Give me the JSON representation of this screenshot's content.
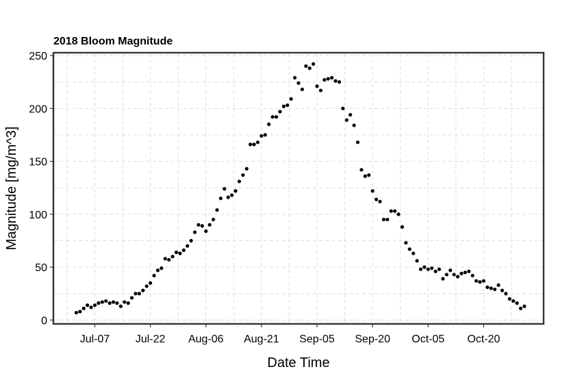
{
  "chart_data": {
    "type": "scatter",
    "title": "2018 Bloom Magnitude",
    "xlabel": "Date Time",
    "ylabel": "Magnitude [mg/m^3]",
    "x_ticks": [
      "Jul-07",
      "Jul-22",
      "Aug-06",
      "Aug-21",
      "Sep-05",
      "Sep-20",
      "Oct-05",
      "Oct-20"
    ],
    "x_tick_dates": [
      "2018-07-07",
      "2018-07-22",
      "2018-08-06",
      "2018-08-21",
      "2018-09-05",
      "2018-09-20",
      "2018-10-05",
      "2018-10-20"
    ],
    "xlim": [
      "2018-06-26",
      "2018-11-05"
    ],
    "y_ticks": [
      0,
      50,
      100,
      150,
      200,
      250
    ],
    "ylim": [
      -3,
      252
    ],
    "grid": true,
    "legend": "none",
    "point_color": "#000000",
    "series": [
      {
        "points": [
          [
            "2018-07-02",
            7
          ],
          [
            "2018-07-03",
            8
          ],
          [
            "2018-07-04",
            11
          ],
          [
            "2018-07-05",
            14
          ],
          [
            "2018-07-06",
            12
          ],
          [
            "2018-07-07",
            14
          ],
          [
            "2018-07-08",
            16
          ],
          [
            "2018-07-09",
            17
          ],
          [
            "2018-07-10",
            18
          ],
          [
            "2018-07-11",
            16
          ],
          [
            "2018-07-12",
            17
          ],
          [
            "2018-07-13",
            16
          ],
          [
            "2018-07-14",
            13
          ],
          [
            "2018-07-15",
            17
          ],
          [
            "2018-07-16",
            16
          ],
          [
            "2018-07-17",
            21
          ],
          [
            "2018-07-18",
            25
          ],
          [
            "2018-07-19",
            25
          ],
          [
            "2018-07-20",
            28
          ],
          [
            "2018-07-21",
            32
          ],
          [
            "2018-07-22",
            35
          ],
          [
            "2018-07-23",
            42
          ],
          [
            "2018-07-24",
            47
          ],
          [
            "2018-07-25",
            49
          ],
          [
            "2018-07-26",
            58
          ],
          [
            "2018-07-27",
            57
          ],
          [
            "2018-07-28",
            60
          ],
          [
            "2018-07-29",
            64
          ],
          [
            "2018-07-30",
            63
          ],
          [
            "2018-07-31",
            66
          ],
          [
            "2018-08-01",
            70
          ],
          [
            "2018-08-02",
            75
          ],
          [
            "2018-08-03",
            83
          ],
          [
            "2018-08-04",
            90
          ],
          [
            "2018-08-05",
            89
          ],
          [
            "2018-08-06",
            84
          ],
          [
            "2018-08-07",
            90
          ],
          [
            "2018-08-08",
            95
          ],
          [
            "2018-08-09",
            104
          ],
          [
            "2018-08-10",
            115
          ],
          [
            "2018-08-11",
            124
          ],
          [
            "2018-08-12",
            116
          ],
          [
            "2018-08-13",
            118
          ],
          [
            "2018-08-14",
            122
          ],
          [
            "2018-08-15",
            131
          ],
          [
            "2018-08-16",
            137
          ],
          [
            "2018-08-17",
            143
          ],
          [
            "2018-08-18",
            166
          ],
          [
            "2018-08-19",
            166
          ],
          [
            "2018-08-20",
            168
          ],
          [
            "2018-08-21",
            174
          ],
          [
            "2018-08-22",
            175
          ],
          [
            "2018-08-23",
            185
          ],
          [
            "2018-08-24",
            192
          ],
          [
            "2018-08-25",
            192
          ],
          [
            "2018-08-26",
            197
          ],
          [
            "2018-08-27",
            202
          ],
          [
            "2018-08-28",
            203
          ],
          [
            "2018-08-29",
            209
          ],
          [
            "2018-08-30",
            229
          ],
          [
            "2018-08-31",
            224
          ],
          [
            "2018-09-01",
            218
          ],
          [
            "2018-09-02",
            240
          ],
          [
            "2018-09-03",
            238
          ],
          [
            "2018-09-04",
            242
          ],
          [
            "2018-09-05",
            221
          ],
          [
            "2018-09-06",
            217
          ],
          [
            "2018-09-07",
            227
          ],
          [
            "2018-09-08",
            228
          ],
          [
            "2018-09-09",
            229
          ],
          [
            "2018-09-10",
            226
          ],
          [
            "2018-09-11",
            225
          ],
          [
            "2018-09-12",
            200
          ],
          [
            "2018-09-13",
            189
          ],
          [
            "2018-09-14",
            194
          ],
          [
            "2018-09-15",
            184
          ],
          [
            "2018-09-16",
            168
          ],
          [
            "2018-09-17",
            142
          ],
          [
            "2018-09-18",
            136
          ],
          [
            "2018-09-19",
            137
          ],
          [
            "2018-09-20",
            122
          ],
          [
            "2018-09-21",
            114
          ],
          [
            "2018-09-22",
            112
          ],
          [
            "2018-09-23",
            95
          ],
          [
            "2018-09-24",
            95
          ],
          [
            "2018-09-25",
            103
          ],
          [
            "2018-09-26",
            103
          ],
          [
            "2018-09-27",
            100
          ],
          [
            "2018-09-28",
            88
          ],
          [
            "2018-09-29",
            73
          ],
          [
            "2018-09-30",
            67
          ],
          [
            "2018-10-01",
            63
          ],
          [
            "2018-10-02",
            56
          ],
          [
            "2018-10-03",
            48
          ],
          [
            "2018-10-04",
            50
          ],
          [
            "2018-10-05",
            48
          ],
          [
            "2018-10-06",
            49
          ],
          [
            "2018-10-07",
            46
          ],
          [
            "2018-10-08",
            48
          ],
          [
            "2018-10-09",
            39
          ],
          [
            "2018-10-10",
            43
          ],
          [
            "2018-10-11",
            47
          ],
          [
            "2018-10-12",
            43
          ],
          [
            "2018-10-13",
            41
          ],
          [
            "2018-10-14",
            44
          ],
          [
            "2018-10-15",
            45
          ],
          [
            "2018-10-16",
            46
          ],
          [
            "2018-10-17",
            42
          ],
          [
            "2018-10-18",
            37
          ],
          [
            "2018-10-19",
            36
          ],
          [
            "2018-10-20",
            37
          ],
          [
            "2018-10-21",
            31
          ],
          [
            "2018-10-22",
            30
          ],
          [
            "2018-10-23",
            29
          ],
          [
            "2018-10-24",
            33
          ],
          [
            "2018-10-25",
            28
          ],
          [
            "2018-10-26",
            25
          ],
          [
            "2018-10-27",
            20
          ],
          [
            "2018-10-28",
            18
          ],
          [
            "2018-10-29",
            16
          ],
          [
            "2018-10-30",
            11
          ],
          [
            "2018-10-31",
            13
          ]
        ]
      }
    ]
  }
}
